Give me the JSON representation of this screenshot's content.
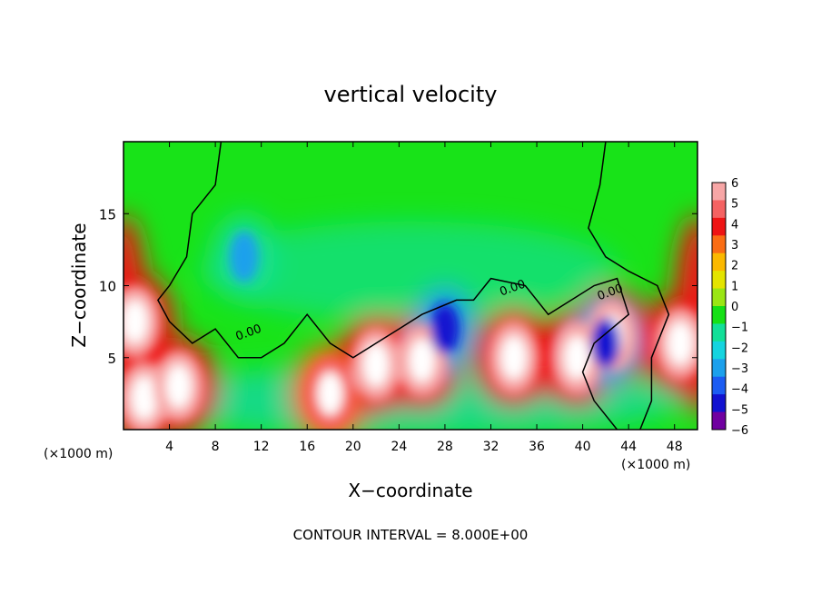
{
  "chart_data": {
    "type": "heatmap",
    "title": "vertical velocity",
    "xlabel": "X−coordinate",
    "ylabel": "Z−coordinate",
    "x_units_label_left": "(×1000 m)",
    "x_units_label_right": "(×1000 m)",
    "footer": "CONTOUR INTERVAL = 8.000E+00",
    "xlim": [
      0,
      50
    ],
    "ylim": [
      0,
      20
    ],
    "x_ticks": [
      "4",
      "8",
      "12",
      "16",
      "20",
      "24",
      "28",
      "32",
      "36",
      "40",
      "44",
      "48"
    ],
    "y_ticks": [
      "5",
      "10",
      "15"
    ],
    "colorbar": {
      "range": [
        -6,
        6
      ],
      "labels": [
        "6",
        "5",
        "4",
        "3",
        "2",
        "1",
        "0",
        "−1",
        "−2",
        "−3",
        "−4",
        "−5",
        "−6"
      ],
      "colors": [
        "#f7a6a6",
        "#f46262",
        "#ee1414",
        "#fa6d14",
        "#fbb800",
        "#e4e400",
        "#9ae614",
        "#16e016",
        "#12df98",
        "#15d4df",
        "#1ca0ec",
        "#1c5cf2",
        "#1212d0",
        "#7000a0"
      ]
    },
    "contour_labels": [
      "0.00",
      "0.00",
      "0.00"
    ],
    "features": [
      {
        "x": 1.0,
        "z": 7.5,
        "w": 6
      },
      {
        "x": 1.8,
        "z": 2.2,
        "w": 6
      },
      {
        "x": 4.8,
        "z": 3.0,
        "w": 6
      },
      {
        "x": 18.0,
        "z": 2.5,
        "w": 5
      },
      {
        "x": 22.0,
        "z": 4.5,
        "w": 6
      },
      {
        "x": 26.0,
        "z": 4.8,
        "w": 6
      },
      {
        "x": 34.0,
        "z": 5.0,
        "w": 6
      },
      {
        "x": 39.5,
        "z": 5.0,
        "w": 6
      },
      {
        "x": 42.5,
        "z": 6.5,
        "w": 6
      },
      {
        "x": 48.5,
        "z": 6.0,
        "w": 6
      },
      {
        "x": 10.5,
        "z": 12.0,
        "w": -3
      },
      {
        "x": 28.0,
        "z": 7.0,
        "w": -5
      },
      {
        "x": 42.0,
        "z": 6.0,
        "w": -5
      }
    ]
  }
}
